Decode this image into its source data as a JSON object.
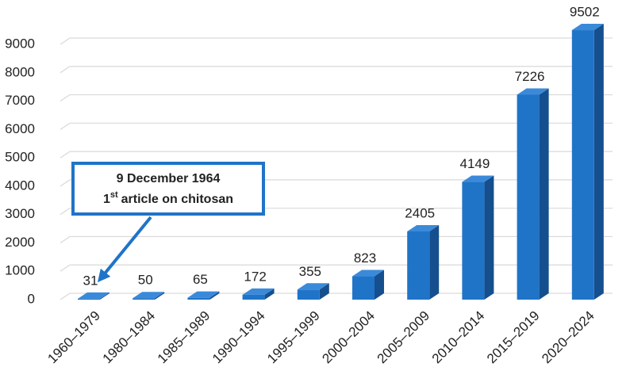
{
  "chart_data": {
    "type": "bar3d",
    "categories": [
      "1960–1979",
      "1980–1984",
      "1985–1989",
      "1990–1994",
      "1995–1999",
      "2000–2004",
      "2005–2009",
      "2010–2014",
      "2015–2019",
      "2020–2024"
    ],
    "values": [
      31,
      50,
      65,
      172,
      355,
      823,
      2405,
      4149,
      7226,
      9502
    ],
    "color": "#1f74c8",
    "ylim": [
      0,
      9000
    ],
    "yticks": [
      0,
      1000,
      2000,
      3000,
      4000,
      5000,
      6000,
      7000,
      8000,
      9000
    ],
    "grid": true,
    "annotation": {
      "date": "9 December 1964",
      "ordinal": "1",
      "ordinal_suffix": "st",
      "text": "article on chitosan"
    }
  }
}
